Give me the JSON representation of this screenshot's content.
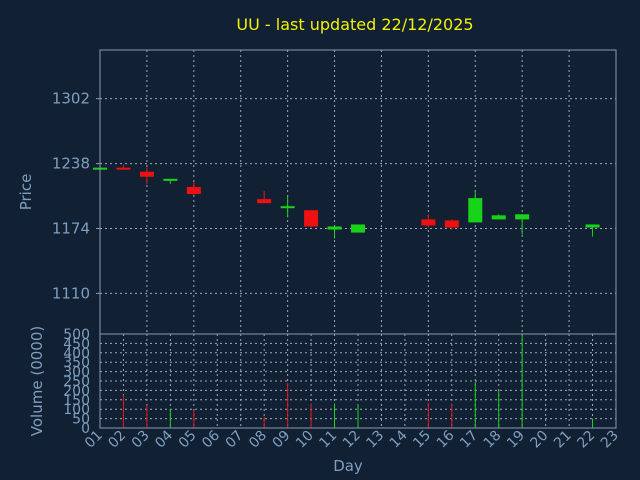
{
  "title": "UU - last updated 22/12/2025",
  "colors": {
    "background": "#112033",
    "title": "#f2f200",
    "axis_text": "#7f9fbf",
    "up": "#18d418",
    "down": "#ee1111"
  },
  "chart_data": [
    {
      "type": "candlestick",
      "ylabel": "Price",
      "yticks": [
        1110,
        1174,
        1238,
        1302
      ],
      "ylim": [
        1070,
        1350
      ],
      "xlim": [
        1,
        23
      ],
      "grid": true,
      "candles": [
        {
          "day": 1,
          "open": 1234,
          "high": 1236,
          "low": 1233,
          "close": 1234
        },
        {
          "day": 2,
          "open": 1234,
          "high": 1237,
          "low": 1232,
          "close": 1232
        },
        {
          "day": 3,
          "open": 1230,
          "high": 1234,
          "low": 1218,
          "close": 1225
        },
        {
          "day": 4,
          "open": 1221,
          "high": 1223,
          "low": 1218,
          "close": 1223
        },
        {
          "day": 5,
          "open": 1215,
          "high": 1220,
          "low": 1207,
          "close": 1208
        },
        {
          "day": 8,
          "open": 1203,
          "high": 1211,
          "low": 1199,
          "close": 1199
        },
        {
          "day": 9,
          "open": 1196,
          "high": 1206,
          "low": 1185,
          "close": 1196
        },
        {
          "day": 10,
          "open": 1192,
          "high": 1192,
          "low": 1175,
          "close": 1176
        },
        {
          "day": 11,
          "open": 1173,
          "high": 1176,
          "low": 1164,
          "close": 1176
        },
        {
          "day": 12,
          "open": 1170,
          "high": 1178,
          "low": 1170,
          "close": 1178
        },
        {
          "day": 15,
          "open": 1183,
          "high": 1188,
          "low": 1175,
          "close": 1177
        },
        {
          "day": 16,
          "open": 1182,
          "high": 1183,
          "low": 1173,
          "close": 1175
        },
        {
          "day": 17,
          "open": 1180,
          "high": 1212,
          "low": 1180,
          "close": 1204
        },
        {
          "day": 18,
          "open": 1183,
          "high": 1188,
          "low": 1183,
          "close": 1187
        },
        {
          "day": 19,
          "open": 1183,
          "high": 1188,
          "low": 1168,
          "close": 1188
        },
        {
          "day": 22,
          "open": 1175,
          "high": 1178,
          "low": 1166,
          "close": 1178
        }
      ]
    },
    {
      "type": "bar",
      "xlabel": "Day",
      "ylabel": "Volume (0000)",
      "yticks": [
        0,
        50,
        100,
        150,
        200,
        250,
        300,
        350,
        400,
        450,
        500
      ],
      "ylim": [
        0,
        500
      ],
      "xticks": [
        "01",
        "02",
        "03",
        "04",
        "05",
        "06",
        "07",
        "08",
        "09",
        "10",
        "11",
        "12",
        "13",
        "14",
        "15",
        "16",
        "17",
        "18",
        "19",
        "20",
        "21",
        "22",
        "23"
      ],
      "grid": true,
      "bars": [
        {
          "day": 2,
          "value": 175,
          "dir": "down"
        },
        {
          "day": 3,
          "value": 120,
          "dir": "down"
        },
        {
          "day": 4,
          "value": 100,
          "dir": "up"
        },
        {
          "day": 5,
          "value": 95,
          "dir": "down"
        },
        {
          "day": 8,
          "value": 60,
          "dir": "down"
        },
        {
          "day": 9,
          "value": 240,
          "dir": "down"
        },
        {
          "day": 10,
          "value": 130,
          "dir": "down"
        },
        {
          "day": 11,
          "value": 130,
          "dir": "up"
        },
        {
          "day": 12,
          "value": 125,
          "dir": "up"
        },
        {
          "day": 15,
          "value": 135,
          "dir": "down"
        },
        {
          "day": 16,
          "value": 130,
          "dir": "down"
        },
        {
          "day": 17,
          "value": 245,
          "dir": "up"
        },
        {
          "day": 18,
          "value": 200,
          "dir": "up"
        },
        {
          "day": 19,
          "value": 500,
          "dir": "up"
        },
        {
          "day": 22,
          "value": 50,
          "dir": "up"
        }
      ]
    }
  ]
}
